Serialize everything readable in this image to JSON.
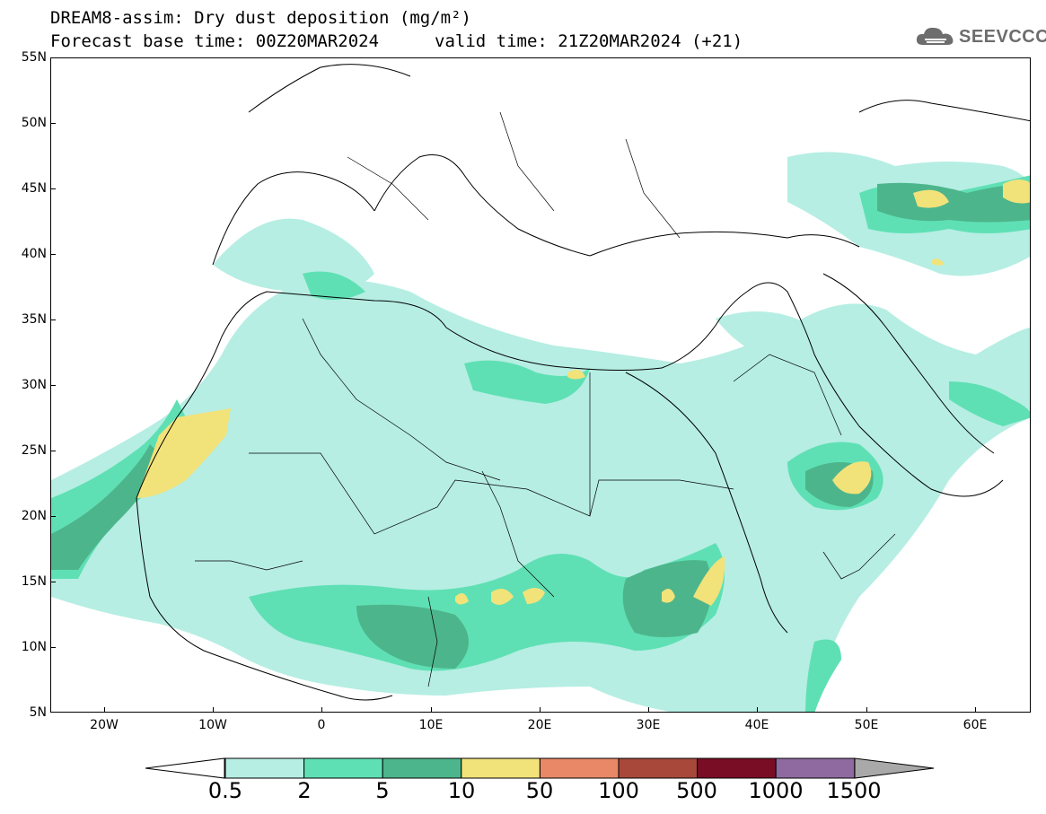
{
  "title": {
    "line1": "DREAM8-assim: Dry dust deposition (mg/m²)",
    "line2": "Forecast base time: 00Z20MAR2024",
    "line3": "valid time: 21Z20MAR2024 (+21)"
  },
  "logo": {
    "text": "SEEVCCC",
    "icon": "cloud-icon"
  },
  "axes": {
    "latitudes": [
      "55N",
      "50N",
      "45N",
      "40N",
      "35N",
      "30N",
      "25N",
      "20N",
      "15N",
      "10N",
      "5N"
    ],
    "longitudes": [
      "20W",
      "10W",
      "0",
      "10E",
      "20E",
      "30E",
      "40E",
      "50E",
      "60E"
    ]
  },
  "legend": {
    "levels": [
      "0.5",
      "2",
      "5",
      "10",
      "50",
      "100",
      "500",
      "1000",
      "1500"
    ],
    "colors": [
      "#b6eee3",
      "#5fe0b4",
      "#4db58c",
      "#f2e27a",
      "#e88866",
      "#a8483a",
      "#7a0d26",
      "#8f6aa0"
    ],
    "over_color": "#a9a9a9",
    "under_color": "#ffffff"
  },
  "colors": {
    "land_border": "#000000",
    "background": "#ffffff"
  }
}
